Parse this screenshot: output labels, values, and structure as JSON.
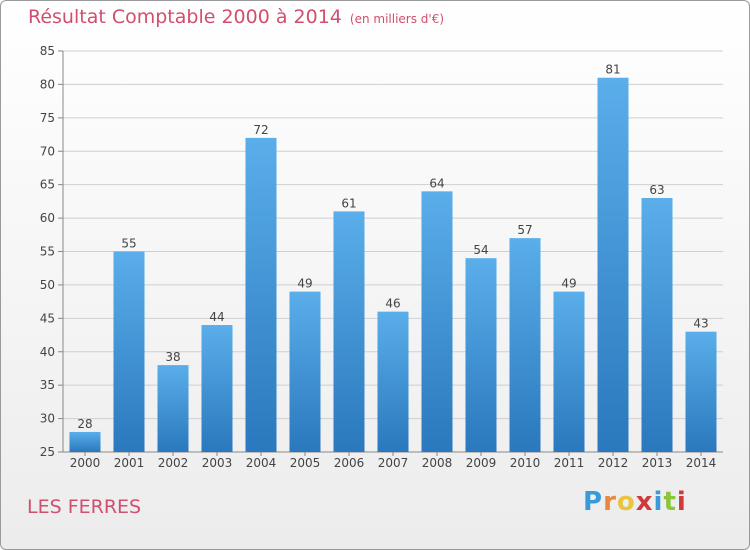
{
  "header": {
    "title": "Résultat Comptable 2000 à 2014",
    "subtitle": "(en milliers d'€)"
  },
  "footer": {
    "commune": "LES FERRES",
    "logo_text": "Proxiti",
    "logo_colors": [
      "#3a9ad9",
      "#e8883a",
      "#e8c53a",
      "#d03a3a",
      "#3a9ad9",
      "#8bc53a",
      "#d03a3a"
    ]
  },
  "chart_data": {
    "type": "bar",
    "title": "Résultat Comptable 2000 à 2014",
    "subtitle": "(en milliers d'€)",
    "xlabel": "",
    "ylabel": "",
    "categories": [
      "2000",
      "2001",
      "2002",
      "2003",
      "2004",
      "2005",
      "2006",
      "2007",
      "2008",
      "2009",
      "2010",
      "2011",
      "2012",
      "2013",
      "2014"
    ],
    "values": [
      28,
      55,
      38,
      44,
      72,
      49,
      61,
      46,
      64,
      54,
      57,
      49,
      81,
      63,
      43
    ],
    "ylim": [
      25,
      85
    ],
    "yticks": [
      25,
      30,
      35,
      40,
      45,
      50,
      55,
      60,
      65,
      70,
      75,
      80,
      85
    ],
    "grid": true,
    "bar_color": "#3f97d8",
    "legend": "none"
  }
}
